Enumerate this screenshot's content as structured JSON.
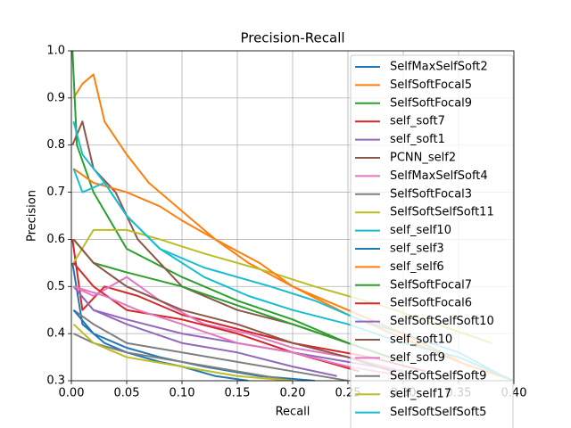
{
  "chart_data": {
    "type": "line",
    "title": "Precision-Recall",
    "x_label": "Recall",
    "y_label": "Precision",
    "xlim": [
      0,
      0.4
    ],
    "ylim": [
      0.3,
      1.0
    ],
    "xticks": [
      {
        "value": 0,
        "label": "0.00"
      },
      0.05,
      {
        "value": 0.1,
        "label": "0.10"
      },
      0.15,
      {
        "value": 0.2,
        "label": "0.20"
      },
      0.25,
      {
        "value": 0.3,
        "label": "0.30"
      },
      0.35,
      {
        "value": 0.4,
        "label": "0.40"
      }
    ],
    "yticks": [
      0.3,
      0.4,
      0.5,
      0.6,
      0.7,
      0.8,
      0.9,
      {
        "value": 1.0,
        "label": "1.0"
      }
    ],
    "grid": true,
    "legend": "upper right",
    "series": [
      {
        "name": "SelfMaxSelfSoft2",
        "color": "#1f77b4",
        "x": [
          0.001,
          0.01,
          0.03,
          0.05,
          0.08,
          0.1,
          0.13,
          0.16
        ],
        "values": [
          0.55,
          0.42,
          0.38,
          0.36,
          0.34,
          0.33,
          0.31,
          0.3
        ]
      },
      {
        "name": "SelfSoftFocal5",
        "color": "#ff7f0e",
        "x": [
          0.002,
          0.01,
          0.02,
          0.03,
          0.05,
          0.07,
          0.1,
          0.13,
          0.16,
          0.2,
          0.25,
          0.3,
          0.35,
          0.4
        ],
        "values": [
          0.9,
          0.93,
          0.95,
          0.85,
          0.78,
          0.72,
          0.66,
          0.6,
          0.55,
          0.5,
          0.44,
          0.39,
          0.34,
          0.3
        ]
      },
      {
        "name": "SelfSoftFocal9",
        "color": "#2ca02c",
        "x": [
          0.001,
          0.005,
          0.02,
          0.05,
          0.1,
          0.15,
          0.2,
          0.25,
          0.3
        ],
        "values": [
          1.0,
          0.8,
          0.7,
          0.58,
          0.52,
          0.47,
          0.43,
          0.38,
          0.34
        ]
      },
      {
        "name": "self_soft7",
        "color": "#d62728",
        "x": [
          0.001,
          0.01,
          0.03,
          0.06,
          0.1,
          0.15,
          0.2,
          0.27,
          0.32
        ],
        "values": [
          0.6,
          0.45,
          0.5,
          0.48,
          0.44,
          0.41,
          0.38,
          0.35,
          0.32
        ]
      },
      {
        "name": "self_soft1",
        "color": "#9467bd",
        "x": [
          0.002,
          0.02,
          0.05,
          0.1,
          0.15,
          0.2,
          0.25,
          0.3
        ],
        "values": [
          0.5,
          0.45,
          0.43,
          0.4,
          0.38,
          0.36,
          0.34,
          0.32
        ]
      },
      {
        "name": "PCNN_self2",
        "color": "#8c564b",
        "x": [
          0.001,
          0.01,
          0.02,
          0.04,
          0.06,
          0.1,
          0.15,
          0.2,
          0.25,
          0.3
        ],
        "values": [
          0.8,
          0.85,
          0.75,
          0.7,
          0.6,
          0.5,
          0.45,
          0.42,
          0.38,
          0.34
        ]
      },
      {
        "name": "SelfMaxSelfSoft4",
        "color": "#e377c2",
        "x": [
          0.002,
          0.02,
          0.05,
          0.08,
          0.12,
          0.16,
          0.2,
          0.25,
          0.3
        ],
        "values": [
          0.5,
          0.48,
          0.52,
          0.47,
          0.42,
          0.4,
          0.37,
          0.35,
          0.32
        ]
      },
      {
        "name": "SelfSoftFocal3",
        "color": "#7f7f7f",
        "x": [
          0.002,
          0.02,
          0.05,
          0.1,
          0.15,
          0.2,
          0.25
        ],
        "values": [
          0.45,
          0.42,
          0.38,
          0.36,
          0.34,
          0.32,
          0.3
        ]
      },
      {
        "name": "SelfSoftSelfSoft11",
        "color": "#bcbd22",
        "x": [
          0.002,
          0.02,
          0.05,
          0.08,
          0.12,
          0.18,
          0.22,
          0.28,
          0.33,
          0.38
        ],
        "values": [
          0.55,
          0.62,
          0.62,
          0.6,
          0.57,
          0.53,
          0.5,
          0.46,
          0.42,
          0.38
        ]
      },
      {
        "name": "self_self10",
        "color": "#17becf",
        "x": [
          0.002,
          0.01,
          0.03,
          0.05,
          0.08,
          0.12,
          0.18,
          0.22,
          0.26,
          0.3,
          0.35,
          0.39
        ],
        "values": [
          0.85,
          0.78,
          0.72,
          0.65,
          0.58,
          0.54,
          0.5,
          0.47,
          0.43,
          0.4,
          0.36,
          0.31
        ]
      },
      {
        "name": "self_self3",
        "color": "#1f77b4",
        "x": [
          0.002,
          0.02,
          0.05,
          0.08,
          0.12,
          0.17,
          0.22
        ],
        "values": [
          0.45,
          0.4,
          0.37,
          0.35,
          0.33,
          0.31,
          0.3
        ]
      },
      {
        "name": "self_self6",
        "color": "#ff7f0e",
        "x": [
          0.002,
          0.02,
          0.05,
          0.08,
          0.1,
          0.13,
          0.17,
          0.2,
          0.25,
          0.3,
          0.36
        ],
        "values": [
          0.75,
          0.72,
          0.7,
          0.67,
          0.64,
          0.6,
          0.55,
          0.5,
          0.45,
          0.4,
          0.33
        ]
      },
      {
        "name": "SelfSoftFocal7",
        "color": "#2ca02c",
        "x": [
          0.002,
          0.02,
          0.05,
          0.1,
          0.15,
          0.2,
          0.25,
          0.3
        ],
        "values": [
          0.6,
          0.55,
          0.53,
          0.5,
          0.46,
          0.42,
          0.38,
          0.34
        ]
      },
      {
        "name": "SelfSoftFocal6",
        "color": "#d62728",
        "x": [
          0.002,
          0.02,
          0.05,
          0.1,
          0.15,
          0.2,
          0.26
        ],
        "values": [
          0.55,
          0.5,
          0.45,
          0.43,
          0.4,
          0.36,
          0.32
        ]
      },
      {
        "name": "SelfSoftSelfSoft10",
        "color": "#9467bd",
        "x": [
          0.002,
          0.02,
          0.05,
          0.1,
          0.15,
          0.2,
          0.24
        ],
        "values": [
          0.5,
          0.45,
          0.42,
          0.38,
          0.36,
          0.33,
          0.31
        ]
      },
      {
        "name": "self_soft10",
        "color": "#8c564b",
        "x": [
          0.002,
          0.02,
          0.05,
          0.1,
          0.15,
          0.2,
          0.25,
          0.29
        ],
        "values": [
          0.6,
          0.55,
          0.5,
          0.45,
          0.42,
          0.38,
          0.35,
          0.32
        ]
      },
      {
        "name": "self_soft9",
        "color": "#e377c2",
        "x": [
          0.002,
          0.03,
          0.06,
          0.1,
          0.15,
          0.2,
          0.25,
          0.3
        ],
        "values": [
          0.5,
          0.48,
          0.45,
          0.42,
          0.38,
          0.36,
          0.33,
          0.31
        ]
      },
      {
        "name": "SelfSoftSelfSoft9",
        "color": "#7f7f7f",
        "x": [
          0.002,
          0.02,
          0.05,
          0.1,
          0.15,
          0.2
        ],
        "values": [
          0.4,
          0.38,
          0.36,
          0.34,
          0.32,
          0.3
        ]
      },
      {
        "name": "self_self17",
        "color": "#bcbd22",
        "x": [
          0.002,
          0.02,
          0.05,
          0.1,
          0.15,
          0.2
        ],
        "values": [
          0.42,
          0.38,
          0.35,
          0.33,
          0.31,
          0.3
        ]
      },
      {
        "name": "SelfSoftSelfSoft5",
        "color": "#17becf",
        "x": [
          0.002,
          0.01,
          0.03,
          0.05,
          0.08,
          0.12,
          0.16,
          0.2,
          0.25,
          0.3,
          0.35,
          0.4
        ],
        "values": [
          0.75,
          0.7,
          0.72,
          0.65,
          0.58,
          0.52,
          0.48,
          0.45,
          0.42,
          0.38,
          0.35,
          0.3
        ]
      }
    ]
  }
}
